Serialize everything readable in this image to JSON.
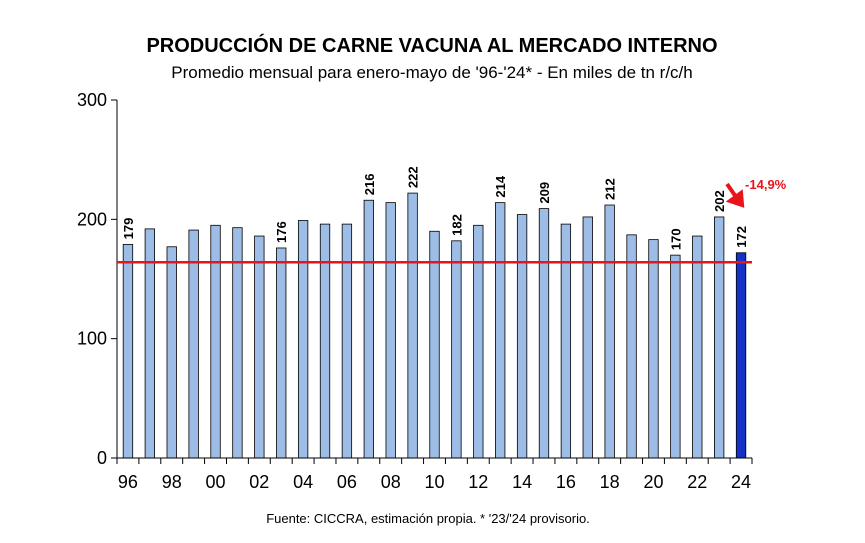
{
  "chart_data": {
    "type": "bar",
    "title": "PRODUCCIÓN DE CARNE VACUNA AL MERCADO INTERNO",
    "subtitle": "Promedio mensual para enero-mayo de '96-'24* - En miles de tn r/c/h",
    "source": "Fuente: CICCRA, estimación propia. * '23/'24 provisorio.",
    "categories": [
      "96",
      "97",
      "98",
      "99",
      "00",
      "01",
      "02",
      "03",
      "04",
      "05",
      "06",
      "07",
      "08",
      "09",
      "10",
      "11",
      "12",
      "13",
      "14",
      "15",
      "16",
      "17",
      "18",
      "19",
      "20",
      "21",
      "22",
      "23",
      "24"
    ],
    "x_tick_labels": [
      "96",
      "98",
      "00",
      "02",
      "04",
      "06",
      "08",
      "10",
      "12",
      "14",
      "16",
      "18",
      "20",
      "22",
      "24"
    ],
    "values": [
      179,
      192,
      177,
      191,
      195,
      193,
      186,
      176,
      199,
      196,
      196,
      216,
      214,
      222,
      190,
      182,
      195,
      214,
      204,
      209,
      196,
      202,
      212,
      187,
      183,
      170,
      186,
      202,
      172
    ],
    "data_labels": {
      "0": "179",
      "7": "176",
      "11": "216",
      "13": "222",
      "15": "182",
      "17": "214",
      "19": "209",
      "22": "212",
      "25": "170",
      "27": "202",
      "28": "172"
    },
    "y_ticks": [
      "0",
      "100",
      "200",
      "300"
    ],
    "ylim": [
      0,
      300
    ],
    "reference_line": 164,
    "annotation": "-14,9%",
    "highlight_index": 28,
    "colors": {
      "bar": "#9dbde6",
      "highlight": "#1432c8",
      "line": "#e8141b",
      "outline": "#000000"
    }
  }
}
